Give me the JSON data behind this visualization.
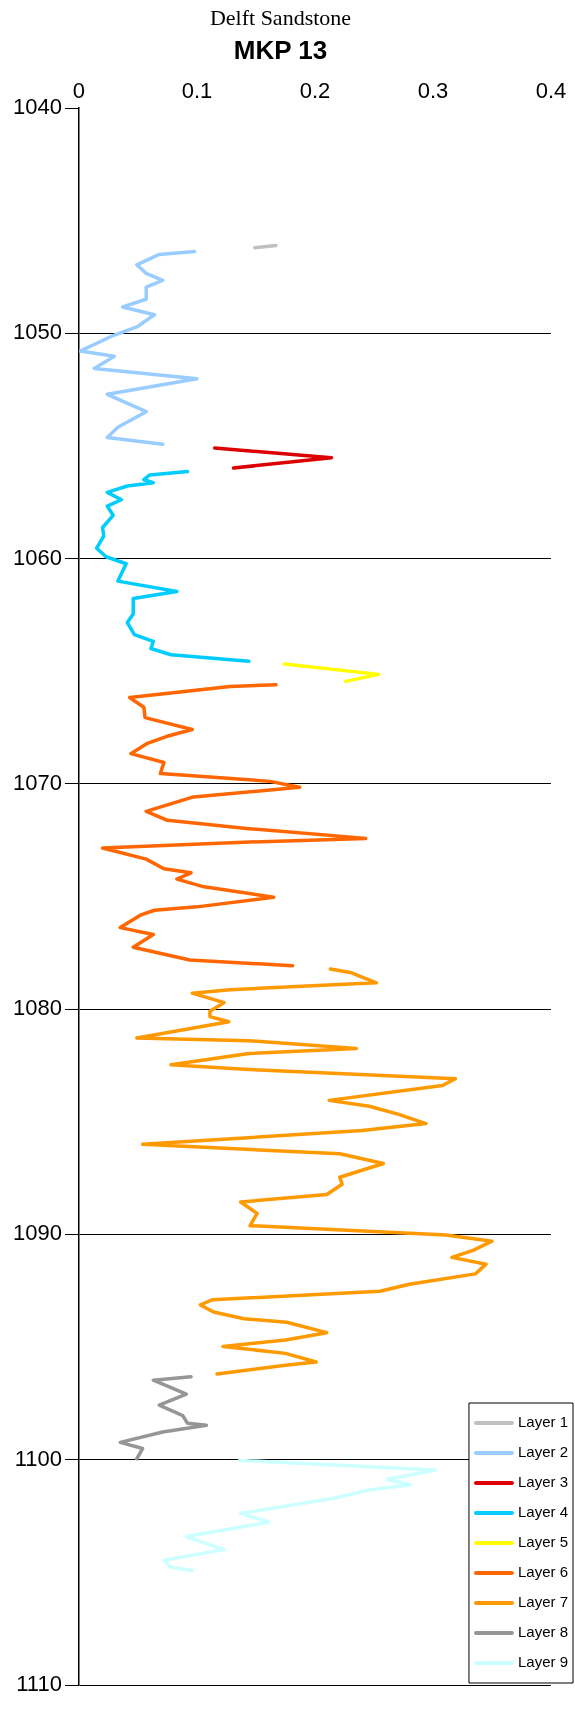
{
  "chart_data": {
    "type": "line",
    "title": "Delft Sandstone",
    "subtitle": "MKP 13",
    "xlim": [
      0,
      0.4
    ],
    "xticks": [
      0,
      0.1,
      0.2,
      0.3,
      0.4
    ],
    "ylim": [
      1110,
      1040
    ],
    "yticks": [
      1040,
      1050,
      1060,
      1070,
      1080,
      1090,
      1100,
      1110
    ],
    "grid": "y",
    "legend": "bottom right",
    "marker": "none",
    "line_style": "solid",
    "series": [
      {
        "name": "Layer 1",
        "color": "#c0c0c0",
        "x": [
          0.167,
          0.149
        ],
        "values": [
          1046.1,
          1046.2
        ]
      },
      {
        "name": "Layer 2",
        "color": "#99ccff",
        "x": [
          0.098,
          0.068,
          0.049,
          0.057,
          0.071,
          0.057,
          0.057,
          0.037,
          0.064,
          0.049,
          0.029,
          0.001,
          0.03,
          0.013,
          0.1,
          0.024,
          0.057,
          0.033,
          0.024,
          0.071
        ],
        "values": [
          1046.37,
          1046.5,
          1046.96,
          1047.34,
          1047.65,
          1047.95,
          1048.49,
          1048.83,
          1049.18,
          1049.72,
          1050.1,
          1050.79,
          1051.02,
          1051.56,
          1052.02,
          1052.71,
          1053.48,
          1054.17,
          1054.63,
          1054.93
        ]
      },
      {
        "name": "Layer 3",
        "color": "#dd0000",
        "x": [
          0.115,
          0.214,
          0.131
        ],
        "values": [
          1055.09,
          1055.52,
          1055.98
        ]
      },
      {
        "name": "Layer 4",
        "color": "#00ccff",
        "x": [
          0.092,
          0.06,
          0.055,
          0.063,
          0.041,
          0.024,
          0.036,
          0.024,
          0.029,
          0.02,
          0.021,
          0.015,
          0.023,
          0.04,
          0.033,
          0.083,
          0.046,
          0.046,
          0.041,
          0.047,
          0.063,
          0.061,
          0.078,
          0.144
        ],
        "values": [
          1056.14,
          1056.29,
          1056.5,
          1056.63,
          1056.78,
          1057.06,
          1057.39,
          1057.67,
          1058.08,
          1058.62,
          1059.0,
          1059.54,
          1059.92,
          1060.23,
          1061.0,
          1061.46,
          1061.77,
          1062.46,
          1062.84,
          1063.38,
          1063.68,
          1063.99,
          1064.27,
          1064.56
        ]
      },
      {
        "name": "Layer 5",
        "color": "#ffff00",
        "x": [
          0.174,
          0.254,
          0.226
        ],
        "values": [
          1064.68,
          1065.14,
          1065.45
        ]
      },
      {
        "name": "Layer 6",
        "color": "#ff6600",
        "x": [
          0.167,
          0.128,
          0.043,
          0.055,
          0.056,
          0.096,
          0.074,
          0.058,
          0.044,
          0.072,
          0.069,
          0.162,
          0.187,
          0.097,
          0.057,
          0.075,
          0.144,
          0.243,
          0.134,
          0.02,
          0.057,
          0.072,
          0.095,
          0.083,
          0.106,
          0.165,
          0.1,
          0.064,
          0.052,
          0.035,
          0.063,
          0.046,
          0.094,
          0.181
        ],
        "values": [
          1065.6,
          1065.68,
          1066.17,
          1066.6,
          1067.06,
          1067.59,
          1067.9,
          1068.2,
          1068.66,
          1069.05,
          1069.54,
          1069.89,
          1070.15,
          1070.58,
          1071.22,
          1071.62,
          1071.99,
          1072.42,
          1072.6,
          1072.85,
          1073.34,
          1073.77,
          1073.95,
          1074.23,
          1074.57,
          1075.03,
          1075.46,
          1075.61,
          1075.83,
          1076.38,
          1076.69,
          1077.25,
          1077.82,
          1078.07
        ]
      },
      {
        "name": "Layer 7",
        "color": "#ff9900",
        "x": [
          0.213,
          0.23,
          0.252,
          0.128,
          0.096,
          0.123,
          0.111,
          0.111,
          0.127,
          0.049,
          0.144,
          0.235,
          0.144,
          0.078,
          0.14,
          0.319,
          0.308,
          0.212,
          0.246,
          0.271,
          0.294,
          0.24,
          0.054,
          0.221,
          0.258,
          0.221,
          0.223,
          0.21,
          0.137,
          0.151,
          0.145,
          0.311,
          0.35,
          0.334,
          0.316,
          0.345,
          0.336,
          0.28,
          0.255,
          0.113,
          0.103,
          0.114,
          0.14,
          0.176,
          0.21,
          0.175,
          0.122,
          0.175,
          0.201,
          0.175,
          0.117
        ],
        "values": [
          1078.22,
          1078.37,
          1078.83,
          1079.14,
          1079.29,
          1079.71,
          1080.09,
          1080.33,
          1080.56,
          1081.28,
          1081.4,
          1081.75,
          1081.97,
          1082.47,
          1082.67,
          1083.09,
          1083.39,
          1084.05,
          1084.31,
          1084.67,
          1085.08,
          1085.39,
          1086.0,
          1086.42,
          1086.85,
          1087.46,
          1087.77,
          1088.23,
          1088.56,
          1089.07,
          1089.61,
          1090.03,
          1090.3,
          1090.71,
          1091.02,
          1091.32,
          1091.75,
          1092.21,
          1092.52,
          1092.9,
          1093.13,
          1093.44,
          1093.74,
          1093.9,
          1094.36,
          1094.69,
          1094.97,
          1095.28,
          1095.66,
          1095.81,
          1096.2
        ]
      },
      {
        "name": "Layer 8",
        "color": "#969696",
        "x": [
          0.095,
          0.063,
          0.091,
          0.068,
          0.088,
          0.092,
          0.108,
          0.071,
          0.035,
          0.054,
          0.049
        ],
        "values": [
          1096.32,
          1096.47,
          1097.09,
          1097.58,
          1098.04,
          1098.38,
          1098.47,
          1098.77,
          1099.23,
          1099.5,
          1099.96
        ]
      },
      {
        "name": "Layer 9",
        "color": "#ccffff",
        "x": [
          0.136,
          0.302,
          0.261,
          0.281,
          0.246,
          0.215,
          0.137,
          0.161,
          0.091,
          0.123,
          0.072,
          0.077,
          0.096
        ],
        "values": [
          1100.03,
          1100.46,
          1100.88,
          1101.11,
          1101.34,
          1101.72,
          1102.38,
          1102.77,
          1103.41,
          1103.99,
          1104.46,
          1104.76,
          1104.92
        ]
      }
    ]
  }
}
